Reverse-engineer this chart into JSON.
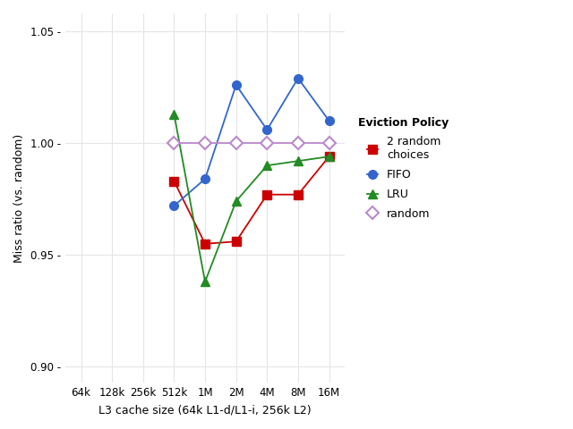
{
  "xlabel": "L3 cache size (64k L1-d/L1-i, 256k L2)",
  "ylabel": "Miss ratio (vs. random)",
  "x_labels": [
    "64k",
    "128k",
    "256k",
    "512k",
    "1M",
    "2M",
    "4M",
    "8M",
    "16M"
  ],
  "x_positions": [
    0,
    1,
    2,
    3,
    4,
    5,
    6,
    7,
    8
  ],
  "series": {
    "2 random\nchoices": {
      "x": [
        3,
        4,
        5,
        6,
        7,
        8
      ],
      "y": [
        0.983,
        0.955,
        0.956,
        0.977,
        0.977,
        0.994
      ],
      "color": "#CC0000",
      "marker": "s",
      "filled": true
    },
    "FIFO": {
      "x": [
        3,
        4,
        5,
        6,
        7,
        8
      ],
      "y": [
        0.972,
        0.984,
        1.026,
        1.006,
        1.029,
        1.01
      ],
      "color": "#3366CC",
      "marker": "o",
      "filled": true
    },
    "LRU": {
      "x": [
        3,
        4,
        5,
        6,
        7,
        8
      ],
      "y": [
        1.013,
        0.938,
        0.974,
        0.99,
        0.992,
        0.994
      ],
      "color": "#228B22",
      "marker": "^",
      "filled": true
    },
    "random": {
      "x": [
        3,
        4,
        5,
        6,
        7,
        8
      ],
      "y": [
        1.0,
        1.0,
        1.0,
        1.0,
        1.0,
        1.0
      ],
      "color": "#BB88CC",
      "marker": "D",
      "filled": false
    }
  },
  "series_order": [
    "2 random\nchoices",
    "FIFO",
    "LRU",
    "random"
  ],
  "ylim": [
    0.893,
    1.058
  ],
  "yticks": [
    0.9,
    0.95,
    1.0,
    1.05
  ],
  "ytick_labels": [
    "0.90 -",
    "0.95 -",
    "1.00 -",
    "1.05 -"
  ],
  "background_color": "#ffffff",
  "panel_color": "#ffffff",
  "grid_color": "#e5e5e5",
  "legend_title": "Eviction Policy",
  "marker_size": 7,
  "linewidth": 1.3,
  "font_size_axis_label": 9,
  "font_size_tick": 8.5,
  "font_size_legend": 9
}
